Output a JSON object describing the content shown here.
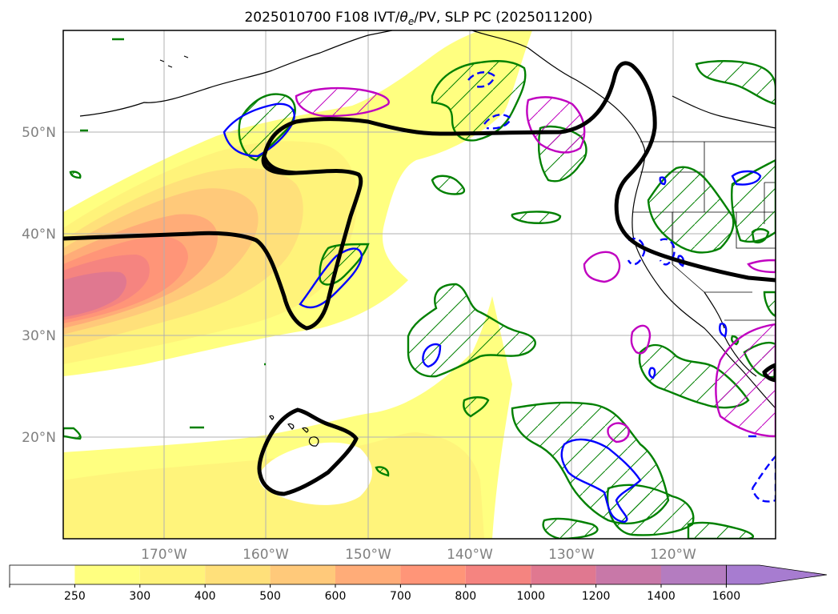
{
  "title": "2025010700 F108 IVT/",
  "title_theta": "θ",
  "title_theta_sub": "e",
  "title_rest": "/PV, SLP PC (2025011200)",
  "map": {
    "lat_labels": [
      "50°N",
      "40°N",
      "30°N",
      "20°N"
    ],
    "lon_labels": [
      "170°W",
      "160°W",
      "150°W",
      "140°W",
      "130°W",
      "120°W"
    ],
    "contour_colors": {
      "slp": "#000000",
      "theta_e_pos": "#008000",
      "pv_blue": "#0000ff",
      "pv_magenta": "#c000c0"
    }
  },
  "colorbar": {
    "levels": [
      "250",
      "300",
      "400",
      "500",
      "600",
      "700",
      "800",
      "1000",
      "1200",
      "1400",
      "1600"
    ],
    "colors": [
      "#ffffff",
      "#ffff80",
      "#fff37a",
      "#ffe07a",
      "#ffc97a",
      "#ffac78",
      "#ff9578",
      "#f58480",
      "#e07890",
      "#c878a8",
      "#b47cc0",
      "#a77cd0"
    ]
  }
}
